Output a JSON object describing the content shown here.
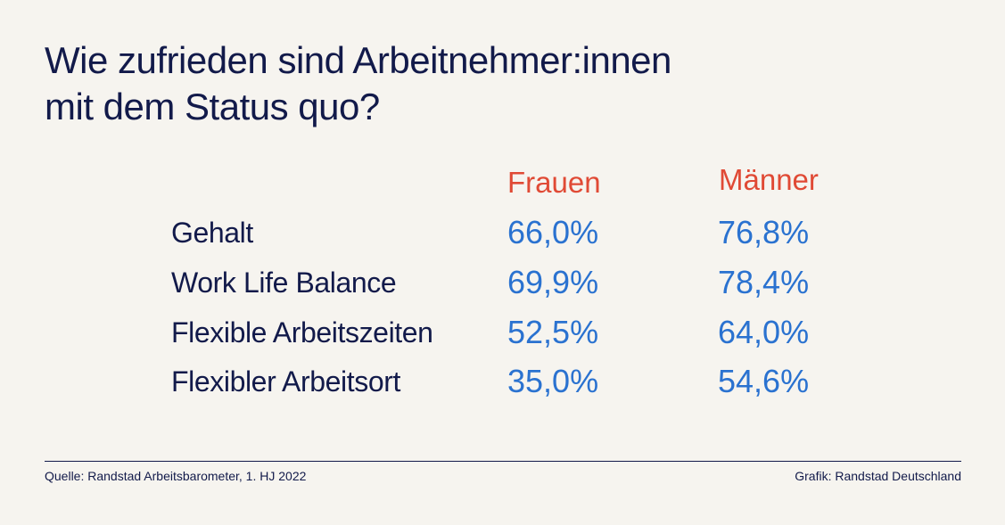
{
  "title": {
    "line1": "Wie zufrieden sind Arbeitnehmer:innen",
    "line2": "mit dem Status quo?"
  },
  "chart_data": {
    "type": "table",
    "columns": [
      "Frauen",
      "Männer"
    ],
    "rows": [
      {
        "label": "Gehalt",
        "values": [
          "66,0%",
          "76,8%"
        ]
      },
      {
        "label": "Work Life Balance",
        "values": [
          "69,9%",
          "78,4%"
        ]
      },
      {
        "label": "Flexible Arbeitszeiten",
        "values": [
          "52,5%",
          "64,0%"
        ]
      },
      {
        "label": "Flexibler Arbeitsort",
        "values": [
          "35,0%",
          "54,6%"
        ]
      }
    ]
  },
  "footer": {
    "source": "Quelle: Randstad Arbeitsbarometer, 1. HJ 2022",
    "credit": "Grafik: Randstad Deutschland"
  },
  "colors": {
    "background": "#f6f4ef",
    "title": "#121a4a",
    "header": "#e04a35",
    "value": "#2a72d0"
  }
}
